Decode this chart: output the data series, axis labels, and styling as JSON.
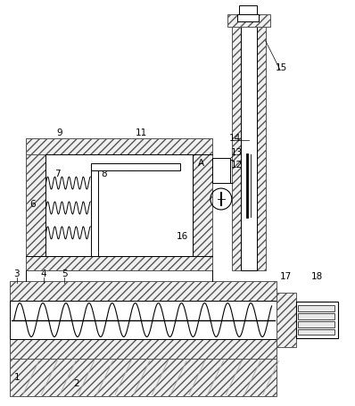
{
  "bg_color": "#ffffff",
  "lc": "#000000",
  "fig_width": 3.98,
  "fig_height": 4.55,
  "dpi": 100
}
